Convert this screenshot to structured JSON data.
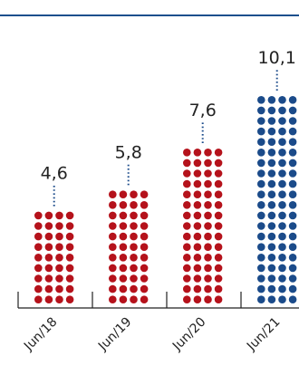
{
  "chart_data": {
    "type": "bar",
    "categories": [
      "Jun/18",
      "Jun/19",
      "Jun/20",
      "Jun/21"
    ],
    "values": [
      4.6,
      5.8,
      7.6,
      10.1
    ],
    "value_labels": [
      "4,6",
      "5,8",
      "7,6",
      "10,1"
    ],
    "dots_per_row": 4,
    "grid": false,
    "legend": "none"
  },
  "colors": {
    "top_rule": "#1c4f8c",
    "past_bars": "#b5121b",
    "latest_bar": "#1b4b8a",
    "axis": "#222222",
    "leader": "#1b4b8a",
    "text": "#222222"
  }
}
